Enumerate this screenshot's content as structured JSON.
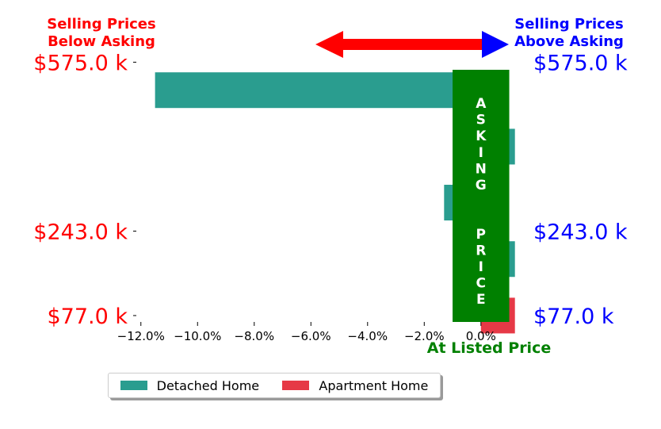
{
  "corner_labels": {
    "left_line1": "Selling Prices",
    "left_line2": "Below Asking",
    "right_line1": "Selling Prices",
    "right_line2": "Above Asking"
  },
  "colors": {
    "detached": "#2a9d8f",
    "apartment": "#e63946",
    "asking_band": "#008000",
    "below": "#ff0000",
    "above": "#0000ff"
  },
  "chart_data": {
    "type": "bar",
    "orientation": "horizontal",
    "xlabel": "At Listed Price",
    "xlim": [
      -13,
      1.6
    ],
    "xticks": [
      -12,
      -10,
      -8,
      -6,
      -4,
      -2,
      0
    ],
    "xtick_labels": [
      "−12.0%",
      "−10.0%",
      "−8.0%",
      "−6.0%",
      "−4.0%",
      "−2.0%",
      "0.0%"
    ],
    "ylim": [
      66,
      585
    ],
    "yticks": [
      575,
      243,
      77
    ],
    "ytick_labels_left": [
      "$575.0 k",
      "$243.0 k",
      "$77.0 k"
    ],
    "ytick_labels_right": [
      "$575.0 k",
      "$243.0 k",
      "$77.0 k"
    ],
    "band_text": "ASKING  PRICE",
    "band_range": [
      -1.0,
      1.0
    ],
    "series": [
      {
        "name": "Detached Home",
        "color": "#2a9d8f",
        "bars": [
          {
            "price_k": 520,
            "value": -11.5
          },
          {
            "price_k": 409,
            "value": 1.2
          },
          {
            "price_k": 299,
            "value": -1.3
          },
          {
            "price_k": 188,
            "value": 1.2
          }
        ]
      },
      {
        "name": "Apartment Home",
        "color": "#e63946",
        "bars": [
          {
            "price_k": 77,
            "value": 1.2
          }
        ]
      }
    ]
  }
}
